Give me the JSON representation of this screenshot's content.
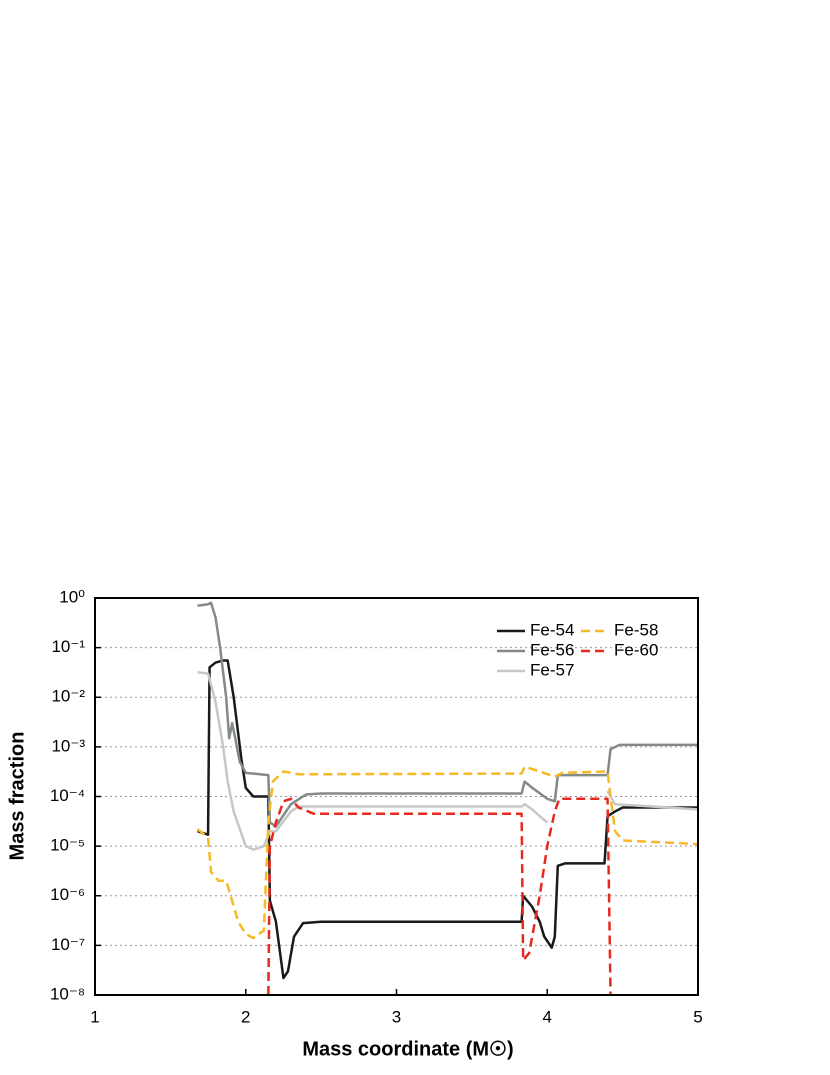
{
  "chart_data": {
    "type": "line",
    "xlabel": "Mass coordinate (M☉)",
    "ylabel": "Mass fraction",
    "xlim": [
      1,
      5
    ],
    "xticks": [
      1,
      2,
      3,
      4,
      5
    ],
    "ylim": [
      1e-08,
      1
    ],
    "ylog": true,
    "grid": true,
    "legend": "upper right",
    "yticks": [
      {
        "value": 1e-08,
        "label": "10⁻⁸"
      },
      {
        "value": 1e-07,
        "label": "10⁻⁷"
      },
      {
        "value": 1e-06,
        "label": "10⁻⁶"
      },
      {
        "value": 1e-05,
        "label": "10⁻⁵"
      },
      {
        "value": 0.0001,
        "label": "10⁻⁴"
      },
      {
        "value": 0.001,
        "label": "10⁻³"
      },
      {
        "value": 0.01,
        "label": "10⁻²"
      },
      {
        "value": 0.1,
        "label": "10⁻¹"
      },
      {
        "value": 1,
        "label": "10⁰"
      }
    ],
    "series": [
      {
        "name": "Fe-54",
        "color": "#1a1a1a",
        "style": "solid",
        "x": [
          1.68,
          1.75,
          1.76,
          1.8,
          1.85,
          1.88,
          1.92,
          1.97,
          2.0,
          2.05,
          2.15,
          2.16,
          2.2,
          2.25,
          2.28,
          2.32,
          2.38,
          2.5,
          3.0,
          3.83,
          3.84,
          3.9,
          3.95,
          3.98,
          4.03,
          4.05,
          4.07,
          4.12,
          4.38,
          4.4,
          4.45,
          4.5,
          5.0
        ],
        "values": [
          2e-05,
          1.7e-05,
          0.04,
          0.05,
          0.055,
          0.055,
          0.01,
          0.0006,
          0.00015,
          0.0001,
          0.0001,
          8e-07,
          3e-07,
          2.2e-08,
          3e-08,
          1.5e-07,
          2.8e-07,
          3e-07,
          3e-07,
          3e-07,
          1e-06,
          6e-07,
          3e-07,
          1.5e-07,
          9e-08,
          1.5e-07,
          4e-06,
          4.5e-06,
          4.5e-06,
          4e-05,
          5e-05,
          6e-05,
          6e-05
        ]
      },
      {
        "name": "Fe-56",
        "color": "#848a88",
        "style": "solid",
        "x": [
          1.68,
          1.75,
          1.77,
          1.8,
          1.83,
          1.87,
          1.89,
          1.91,
          1.93,
          1.96,
          2.0,
          2.15,
          2.16,
          2.2,
          2.3,
          2.4,
          2.5,
          3.83,
          3.85,
          3.9,
          4.0,
          4.05,
          4.07,
          4.4,
          4.42,
          4.48,
          5.0
        ],
        "values": [
          0.7,
          0.75,
          0.8,
          0.4,
          0.1,
          0.01,
          0.0015,
          0.003,
          0.0015,
          0.0005,
          0.0003,
          0.00027,
          3e-05,
          2.5e-05,
          7e-05,
          0.00011,
          0.000115,
          0.000115,
          0.0002,
          0.00015,
          9e-05,
          8e-05,
          0.00027,
          0.00027,
          0.0009,
          0.0011,
          0.0011
        ]
      },
      {
        "name": "Fe-57",
        "color": "#c6c8c7",
        "style": "solid",
        "x": [
          1.68,
          1.75,
          1.8,
          1.85,
          1.88,
          1.92,
          2.0,
          2.05,
          2.12,
          2.16,
          2.2,
          2.3,
          2.35,
          3.83,
          3.85,
          3.9,
          3.95,
          4.0,
          4.2,
          4.4,
          4.45,
          5.0
        ],
        "values": [
          0.032,
          0.03,
          0.008,
          0.001,
          0.0002,
          5e-05,
          1e-05,
          8.5e-06,
          1e-05,
          2e-05,
          2e-05,
          5e-05,
          6.3e-05,
          6.3e-05,
          7e-05,
          5.5e-05,
          4e-05,
          3e-05,
          null,
          0.00013,
          7e-05,
          5.5e-05
        ]
      },
      {
        "name": "Fe-58",
        "color": "#f7b924",
        "style": "dashed",
        "x": [
          1.68,
          1.75,
          1.77,
          1.82,
          1.87,
          1.9,
          1.95,
          2.0,
          2.05,
          2.12,
          2.15,
          2.18,
          2.25,
          2.35,
          3.83,
          3.85,
          3.95,
          4.05,
          4.1,
          4.4,
          4.42,
          4.45,
          4.5,
          5.0
        ],
        "values": [
          2.2e-05,
          1.5e-05,
          3e-06,
          2e-06,
          2e-06,
          1e-06,
          3e-07,
          1.7e-07,
          1.4e-07,
          2e-07,
          3e-05,
          0.0002,
          0.00032,
          0.00028,
          0.00029,
          0.0004,
          0.00032,
          0.00025,
          0.0003,
          0.00032,
          0.0001,
          2e-05,
          1.3e-05,
          1.1e-05
        ]
      },
      {
        "name": "Fe-60",
        "color": "#e62a20",
        "style": "dashed",
        "x": [
          2.15,
          2.16,
          2.2,
          2.25,
          2.3,
          2.35,
          2.45,
          3.83,
          3.84,
          3.88,
          3.95,
          4.0,
          4.05,
          4.08,
          4.4,
          4.42
        ],
        "values": [
          1e-08,
          1e-05,
          3e-05,
          8e-05,
          9e-05,
          6e-05,
          4.5e-05,
          4.5e-05,
          5e-08,
          7e-08,
          1e-06,
          1e-05,
          5e-05,
          9e-05,
          9e-05,
          1e-08
        ]
      }
    ]
  }
}
